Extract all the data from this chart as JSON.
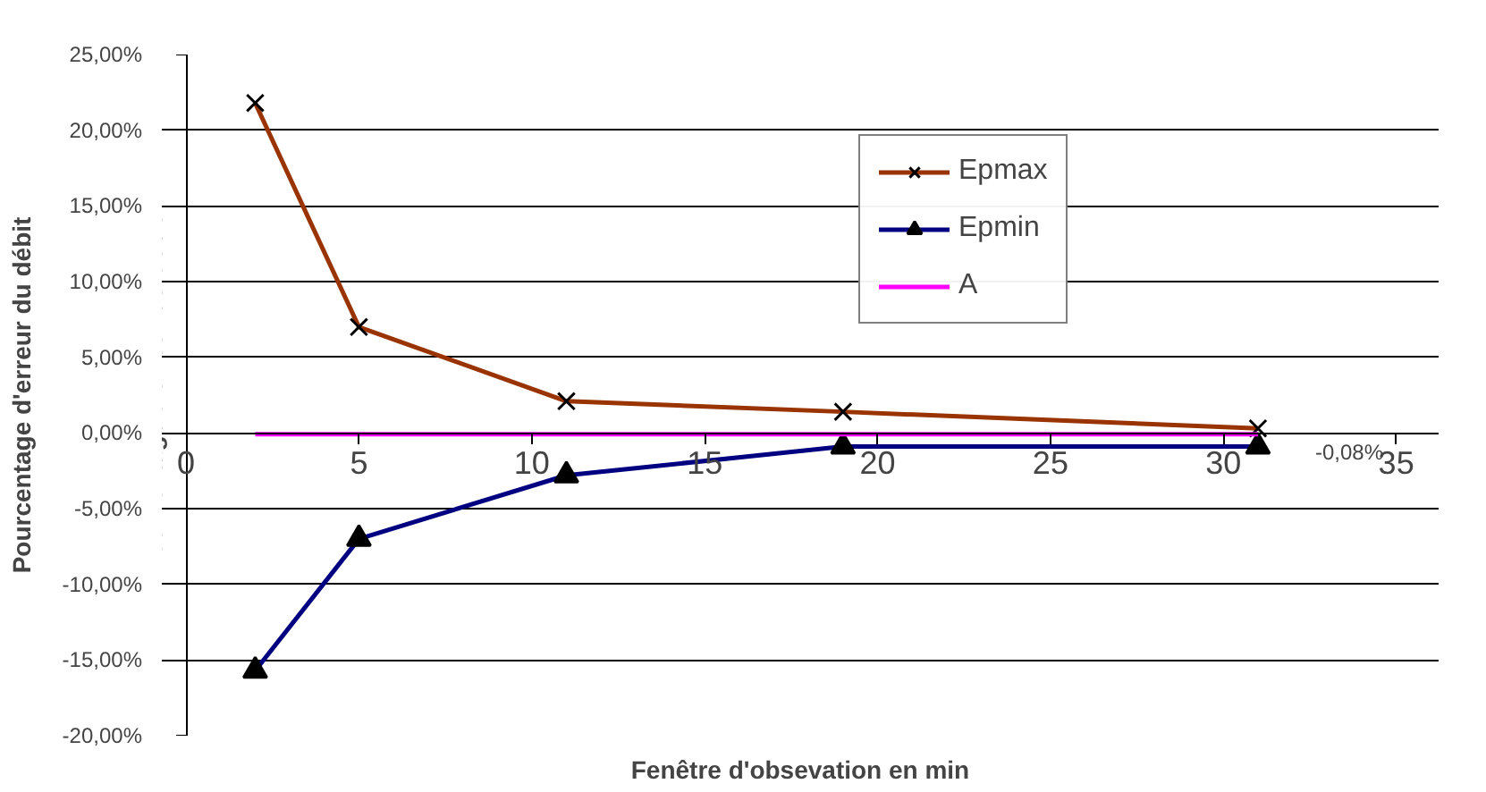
{
  "chart_data": {
    "type": "line",
    "xlabel": "Fenêtre d'obsevation en min",
    "ylabel": "Pourcentage d'erreur du débit",
    "x": [
      2,
      5,
      11,
      19,
      31
    ],
    "series": [
      {
        "name": "Epmax",
        "color": "#993300",
        "values": [
          21.8,
          7.0,
          2.1,
          1.4,
          0.3
        ],
        "marker": "cross"
      },
      {
        "name": "Epmin",
        "color": "#000080",
        "values": [
          -15.7,
          -7.0,
          -2.8,
          -0.9,
          -0.9
        ],
        "marker": "triangle"
      },
      {
        "name": "A",
        "color": "#ff00ff",
        "values": [
          -0.08,
          -0.08,
          -0.08,
          -0.08,
          -0.08
        ],
        "marker": "none"
      }
    ],
    "annotations": [
      {
        "text": "-0,08%",
        "x": 31,
        "y": -0.08
      }
    ],
    "xlim": [
      0,
      35
    ],
    "xticks": [
      0,
      5,
      10,
      15,
      20,
      25,
      30,
      35
    ],
    "ylim": [
      -20,
      25
    ],
    "yticks": [
      {
        "value": -20,
        "label": "-20,00%"
      },
      {
        "value": -15,
        "label": "-15,00%"
      },
      {
        "value": -10,
        "label": "-10,00%"
      },
      {
        "value": -5,
        "label": "-5,00%"
      },
      {
        "value": 0,
        "label": "0,00%"
      },
      {
        "value": 5,
        "label": "5,00%"
      },
      {
        "value": 10,
        "label": "10,00%"
      },
      {
        "value": 15,
        "label": "15,00%"
      },
      {
        "value": 20,
        "label": "20,00%"
      },
      {
        "value": 25,
        "label": "25,00%"
      }
    ],
    "grid": "y",
    "legend": "top"
  }
}
